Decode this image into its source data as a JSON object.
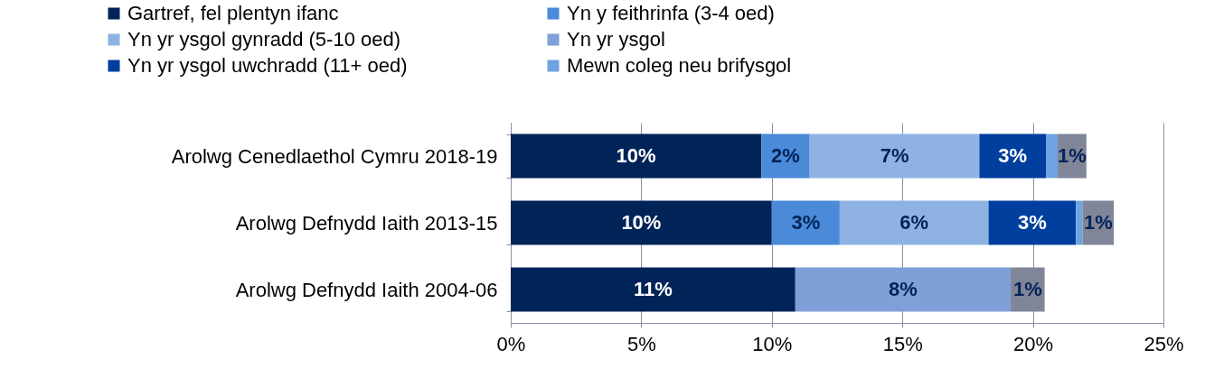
{
  "chart_data": {
    "type": "bar",
    "orientation": "horizontal",
    "stacked": true,
    "categories": [
      "Arolwg Cenedlaethol Cymru 2018-19",
      "Arolwg Defnydd Iaith 2013-15",
      "Arolwg Defnydd Iaith 2004-06"
    ],
    "series": [
      {
        "name": "Gartref, fel plentyn ifanc",
        "color": "#002358",
        "values": [
          9.6,
          10.0,
          10.9
        ],
        "value_labels": [
          "10%",
          "10%",
          "11%"
        ]
      },
      {
        "name": "Yn y feithrinfa (3-4 oed)",
        "color": "#4a8ad8",
        "values": [
          1.85,
          2.6,
          null
        ],
        "value_labels": [
          "2%",
          "3%",
          null
        ]
      },
      {
        "name": "Yn yr ysgol gynradd (5-10 oed)",
        "color": "#8eb3e2",
        "values": [
          6.5,
          5.7,
          null
        ],
        "value_labels": [
          "7%",
          "6%",
          null
        ]
      },
      {
        "name": "Yn yr ysgol",
        "color": "#7f9fd8",
        "values": [
          null,
          null,
          8.25
        ],
        "value_labels": [
          null,
          null,
          "8%"
        ]
      },
      {
        "name": "Yn yr ysgol uwchradd (11+ oed)",
        "color": "#003f9e",
        "values": [
          2.55,
          3.35,
          null
        ],
        "value_labels": [
          "3%",
          "3%",
          null
        ]
      },
      {
        "name": "Mewn coleg neu brifysgol",
        "color": "#6fa2e2",
        "values": [
          0.45,
          0.25,
          null
        ],
        "value_labels": [
          null,
          null,
          null
        ]
      },
      {
        "color": "#808597",
        "values": [
          1.1,
          1.2,
          1.3
        ],
        "value_labels": [
          "1%",
          "1%",
          "1%"
        ]
      }
    ],
    "xlim": [
      0,
      25
    ],
    "xticks": [
      {
        "value": 0,
        "label": "0%"
      },
      {
        "value": 5,
        "label": "5%"
      },
      {
        "value": 10,
        "label": "10%"
      },
      {
        "value": 15,
        "label": "15%"
      },
      {
        "value": 20,
        "label": "20%"
      },
      {
        "value": 25,
        "label": "25%"
      }
    ],
    "grid": "x",
    "legend": "top left"
  }
}
